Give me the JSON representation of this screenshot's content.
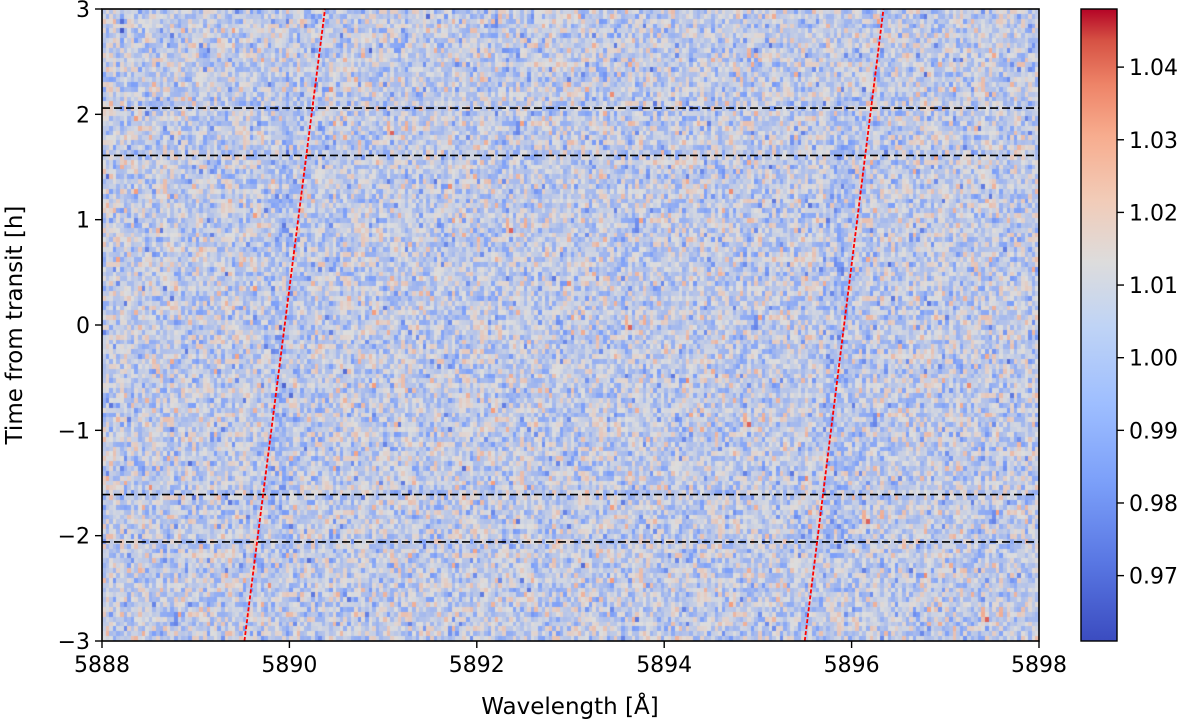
{
  "chart_data": {
    "type": "heatmap",
    "title": "",
    "xlabel": "Wavelength [Å]",
    "ylabel": "Time from transit [h]",
    "xlim": [
      5888,
      5898
    ],
    "ylim": [
      -3,
      3
    ],
    "x_ticks": [
      5888,
      5890,
      5892,
      5894,
      5896,
      5898
    ],
    "x_tick_labels": [
      "5888",
      "5890",
      "5892",
      "5894",
      "5896",
      "5898"
    ],
    "y_ticks": [
      -3,
      -2,
      -1,
      0,
      1,
      2,
      3
    ],
    "y_tick_labels": [
      "−3",
      "−2",
      "−1",
      "0",
      "1",
      "2",
      "3"
    ],
    "colormap": "coolwarm",
    "colors": {
      "low": "#3b4cc0",
      "mid": "#dddddd",
      "high": "#b40426",
      "ref_line": "#ff0000",
      "hline": "#000000"
    },
    "colorbar": {
      "range": [
        0.961,
        1.048
      ],
      "ticks": [
        0.97,
        0.98,
        0.99,
        1.0,
        1.01,
        1.02,
        1.03,
        1.04
      ],
      "tick_labels": [
        "0.97",
        "0.98",
        "0.99",
        "1.00",
        "1.01",
        "1.02",
        "1.03",
        "1.04"
      ]
    },
    "grid": false,
    "horizontal_lines": [
      2.06,
      1.61,
      -1.61,
      -2.06
    ],
    "trail_lines": [
      {
        "points": [
          [
            5889.52,
            -3
          ],
          [
            5890.38,
            3
          ]
        ]
      },
      {
        "points": [
          [
            5895.5,
            -3
          ],
          [
            5896.34,
            3
          ]
        ]
      }
    ],
    "absorption_trails": [
      {
        "at_minus3": 5889.85,
        "at_plus3": 5890.0,
        "note_y_range": [
          -2.2,
          2.2
        ]
      },
      {
        "at_minus3": 5895.8,
        "at_plus3": 5895.95,
        "note_y_range": [
          -2.2,
          2.2
        ]
      }
    ],
    "grid_resolution": {
      "columns": 260,
      "rows": 130
    },
    "value_noise": {
      "mean": 0.9985,
      "sd": 0.0085
    }
  }
}
